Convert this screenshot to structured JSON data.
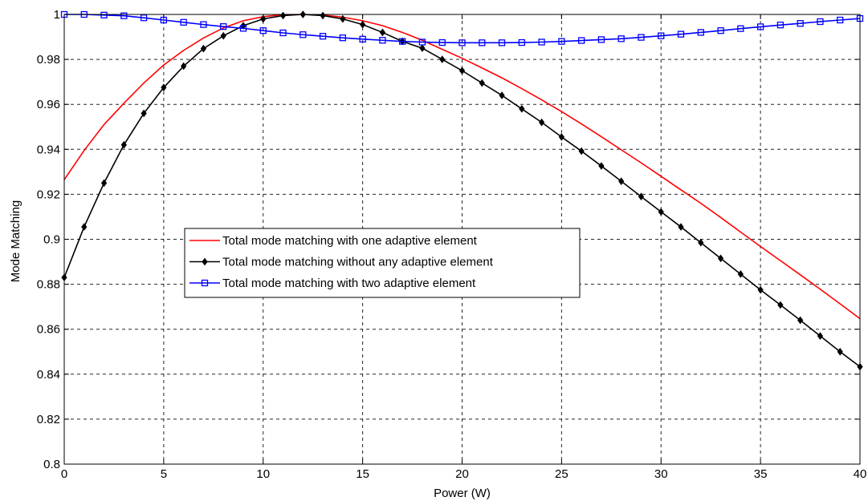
{
  "chart_data": {
    "type": "line",
    "title": "",
    "xlabel": "Power (W)",
    "ylabel": "Mode Matching",
    "xlim": [
      0,
      40
    ],
    "ylim": [
      0.8,
      1.0
    ],
    "xticks": [
      0,
      5,
      10,
      15,
      20,
      25,
      30,
      35,
      40
    ],
    "xtick_labels": [
      "0",
      "5",
      "10",
      "15",
      "20",
      "25",
      "30",
      "35",
      "40"
    ],
    "yticks": [
      0.8,
      0.82,
      0.84,
      0.86,
      0.88,
      0.9,
      0.92,
      0.94,
      0.96,
      0.98,
      1.0
    ],
    "ytick_labels": [
      "0.8",
      "0.82",
      "0.84",
      "0.86",
      "0.88",
      "0.9",
      "0.92",
      "0.94",
      "0.96",
      "0.98",
      "1"
    ],
    "grid": true,
    "legend_position": "center-left",
    "x": [
      0,
      1,
      2,
      3,
      4,
      5,
      6,
      7,
      8,
      9,
      10,
      11,
      12,
      13,
      14,
      15,
      16,
      17,
      18,
      19,
      20,
      21,
      22,
      23,
      24,
      25,
      26,
      27,
      28,
      29,
      30,
      31,
      32,
      33,
      34,
      35,
      36,
      37,
      38,
      39,
      40
    ],
    "series": [
      {
        "name": "Total mode matching with one adaptive element",
        "color": "#ff0000",
        "marker": "none",
        "values": [
          0.9265,
          0.9395,
          0.951,
          0.9605,
          0.9695,
          0.9775,
          0.984,
          0.9895,
          0.994,
          0.9972,
          0.999,
          0.9999,
          1.0,
          0.9997,
          0.9988,
          0.9972,
          0.995,
          0.992,
          0.9885,
          0.9845,
          0.9805,
          0.9762,
          0.9718,
          0.967,
          0.962,
          0.9568,
          0.9513,
          0.9456,
          0.9398,
          0.934,
          0.928,
          0.922,
          0.916,
          0.9097,
          0.9032,
          0.8968,
          0.8905,
          0.8842,
          0.8778,
          0.8713,
          0.8647
        ]
      },
      {
        "name": "Total mode matching  without any adaptive element",
        "color": "#000000",
        "marker": "diamond",
        "values": [
          0.883,
          0.9055,
          0.925,
          0.942,
          0.956,
          0.9675,
          0.977,
          0.9848,
          0.9905,
          0.995,
          0.998,
          0.9995,
          1.0,
          0.9995,
          0.998,
          0.9955,
          0.992,
          0.988,
          0.985,
          0.98,
          0.975,
          0.9695,
          0.964,
          0.958,
          0.952,
          0.9455,
          0.9392,
          0.9326,
          0.9258,
          0.919,
          0.9122,
          0.9055,
          0.8985,
          0.8915,
          0.8845,
          0.8775,
          0.8708,
          0.864,
          0.857,
          0.85,
          0.8433
        ]
      },
      {
        "name": "Total mode matching with two adaptive element",
        "color": "#0000ff",
        "marker": "square",
        "values": [
          1.0,
          1.0,
          0.9997,
          0.9994,
          0.9985,
          0.9975,
          0.9965,
          0.9955,
          0.9946,
          0.9938,
          0.9928,
          0.9918,
          0.991,
          0.9903,
          0.9896,
          0.989,
          0.9885,
          0.988,
          0.9877,
          0.9875,
          0.9874,
          0.9874,
          0.9874,
          0.9875,
          0.9877,
          0.988,
          0.9884,
          0.9888,
          0.9892,
          0.9898,
          0.9905,
          0.9912,
          0.992,
          0.9928,
          0.9937,
          0.9945,
          0.9953,
          0.996,
          0.9968,
          0.9975,
          0.9982
        ]
      }
    ]
  }
}
